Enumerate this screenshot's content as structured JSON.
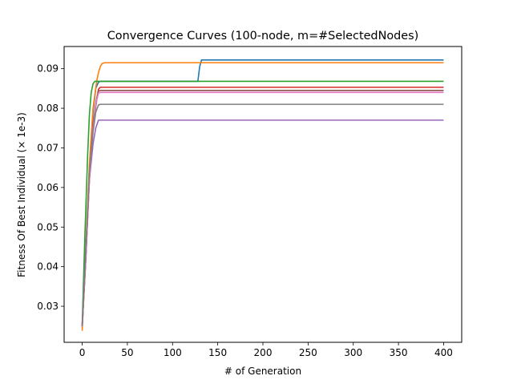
{
  "chart_data": {
    "type": "line",
    "title": "Convergence Curves (100-node, m=#SelectedNodes)",
    "xlabel": "# of Generation",
    "ylabel": "Fitness Of Best Individual (× 1e-3)",
    "xlim": [
      -20,
      420
    ],
    "ylim": [
      0.0209,
      0.0956
    ],
    "xticks": [
      0,
      50,
      100,
      150,
      200,
      250,
      300,
      350,
      400
    ],
    "yticks": [
      0.03,
      0.04,
      0.05,
      0.06,
      0.07,
      0.08,
      0.09
    ],
    "xtick_labels": [
      "0",
      "50",
      "100",
      "150",
      "200",
      "250",
      "300",
      "350",
      "400"
    ],
    "ytick_labels": [
      "0.03",
      "0.04",
      "0.05",
      "0.06",
      "0.07",
      "0.08",
      "0.09"
    ],
    "grid": false,
    "legend": "none",
    "series": [
      {
        "color": "#1f77b4",
        "x": [
          0,
          4,
          8,
          12,
          15,
          18,
          20,
          128,
          130,
          132,
          400
        ],
        "y": [
          0.0245,
          0.042,
          0.065,
          0.079,
          0.085,
          0.0866,
          0.0868,
          0.0868,
          0.0905,
          0.0922,
          0.0922
        ]
      },
      {
        "color": "#ff7f0e",
        "x": [
          0,
          4,
          8,
          12,
          16,
          18,
          20,
          22,
          25,
          400
        ],
        "y": [
          0.0238,
          0.045,
          0.066,
          0.08,
          0.0868,
          0.089,
          0.0905,
          0.0913,
          0.0915,
          0.0915
        ]
      },
      {
        "color": "#2ca02c",
        "x": [
          0,
          3,
          6,
          8,
          10,
          12,
          14,
          16,
          400
        ],
        "y": [
          0.0255,
          0.048,
          0.068,
          0.0785,
          0.084,
          0.0862,
          0.0868,
          0.0868,
          0.0868
        ]
      },
      {
        "color": "#d62728",
        "x": [
          0,
          4,
          8,
          12,
          16,
          18,
          20,
          400
        ],
        "y": [
          0.025,
          0.042,
          0.062,
          0.075,
          0.082,
          0.0848,
          0.0853,
          0.0853
        ]
      },
      {
        "color": "#9467bd",
        "x": [
          0,
          4,
          8,
          12,
          15,
          18,
          400
        ],
        "y": [
          0.025,
          0.045,
          0.062,
          0.071,
          0.075,
          0.077,
          0.077
        ]
      },
      {
        "color": "#8c564b",
        "x": [
          0,
          4,
          8,
          12,
          16,
          18,
          20,
          400
        ],
        "y": [
          0.025,
          0.043,
          0.063,
          0.076,
          0.0825,
          0.0843,
          0.0845,
          0.0845
        ]
      },
      {
        "color": "#e377c2",
        "x": [
          0,
          4,
          8,
          12,
          16,
          18,
          20,
          400
        ],
        "y": [
          0.025,
          0.042,
          0.062,
          0.075,
          0.082,
          0.0838,
          0.084,
          0.084
        ]
      },
      {
        "color": "#7f7f7f",
        "x": [
          0,
          4,
          8,
          12,
          15,
          18,
          20,
          400
        ],
        "y": [
          0.025,
          0.044,
          0.064,
          0.074,
          0.079,
          0.0808,
          0.081,
          0.081
        ]
      }
    ]
  }
}
